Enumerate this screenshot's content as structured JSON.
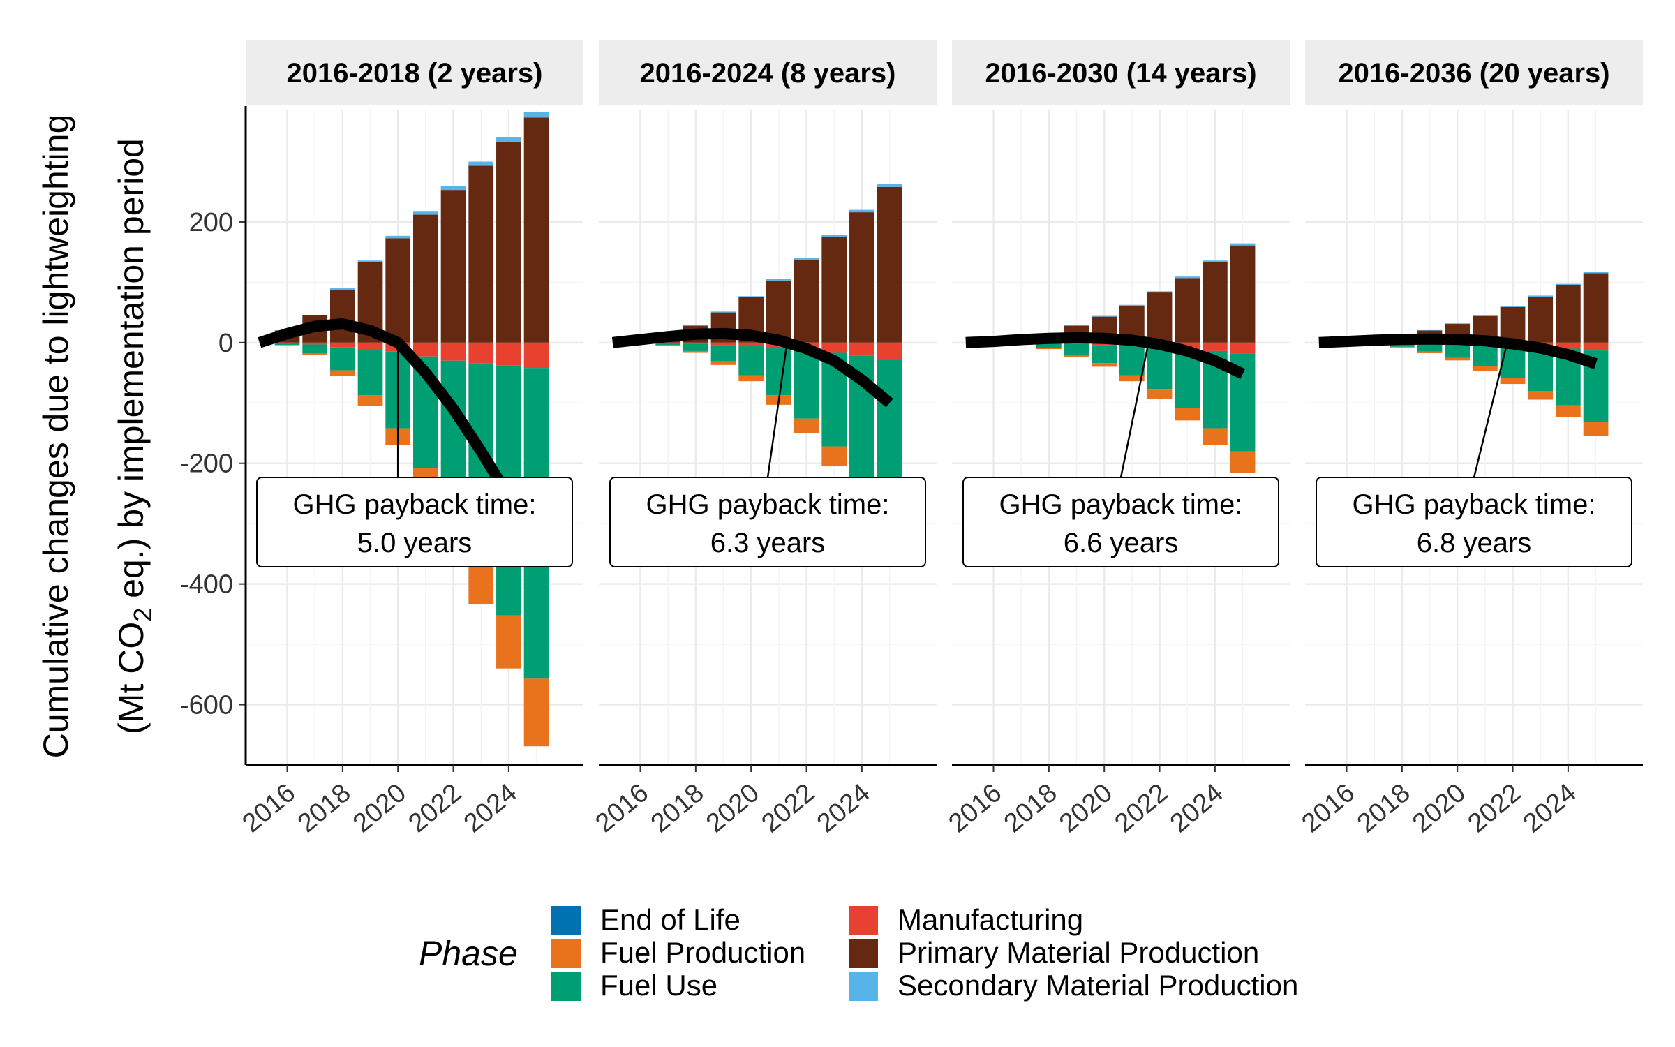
{
  "chart_data": {
    "type": "bar",
    "ylabel_line1": "Cumulative changes due to lightweighting",
    "ylabel_line2_parts": [
      "(Mt CO",
      "2",
      " eq.) by implementation period"
    ],
    "xlim": [
      2014.5,
      2026.7
    ],
    "ylim": [
      -700,
      385
    ],
    "y_ticks": [
      -600,
      -400,
      -200,
      0,
      200
    ],
    "y_tick_labels": [
      "-600",
      "-400",
      "-200",
      "0",
      "200"
    ],
    "x_ticks": [
      2016,
      2018,
      2020,
      2022,
      2024
    ],
    "x_tick_labels": [
      "2016",
      "2018",
      "2020",
      "2022",
      "2024"
    ],
    "years": [
      2015,
      2016,
      2017,
      2018,
      2019,
      2020,
      2021,
      2022,
      2023,
      2024,
      2025
    ],
    "phases": [
      {
        "key": "end_of_life",
        "name": "End of Life",
        "color": "#0072B2"
      },
      {
        "key": "fuel_production",
        "name": "Fuel Production",
        "color": "#E8731C"
      },
      {
        "key": "fuel_use",
        "name": "Fuel Use",
        "color": "#009E73"
      },
      {
        "key": "manufacturing",
        "name": "Manufacturing",
        "color": "#E8412F"
      },
      {
        "key": "primary_material",
        "name": "Primary Material Production",
        "color": "#652810"
      },
      {
        "key": "secondary_material",
        "name": "Secondary Material Production",
        "color": "#56B4E9"
      }
    ],
    "legend_title": "Phase",
    "legend_placement": "bottom",
    "grid": true,
    "facets": [
      {
        "title": "2016-2018 (2 years)",
        "payback_label": "GHG payback time:",
        "payback_value": "5.0 years",
        "payback_year": 2020.0,
        "primary_material": [
          0,
          20,
          45,
          88,
          133,
          173,
          212,
          253,
          293,
          333,
          373
        ],
        "secondary_material": [
          0,
          0.5,
          1,
          2,
          3,
          4,
          5,
          6,
          7,
          8,
          9
        ],
        "manufacturing": [
          0,
          -1,
          -3,
          -8,
          -12,
          -15,
          -23,
          -30,
          -34,
          -38,
          -42
        ],
        "fuel_use": [
          0,
          -3,
          -15,
          -38,
          -75,
          -127,
          -185,
          -258,
          -330,
          -414,
          -515
        ],
        "fuel_production": [
          0,
          -0.5,
          -3,
          -9,
          -18,
          -28,
          -40,
          -55,
          -70,
          -88,
          -112
        ],
        "end_of_life": [
          0,
          0,
          0,
          0,
          0,
          0,
          0,
          0,
          0,
          0,
          0
        ],
        "net_line": [
          0,
          15,
          27,
          31,
          20,
          0,
          -50,
          -110,
          -180,
          -255,
          -340
        ]
      },
      {
        "title": "2016-2024 (8 years)",
        "payback_label": "GHG payback time:",
        "payback_value": "6.3 years",
        "payback_year": 2021.3,
        "primary_material": [
          0,
          4,
          12,
          28,
          50,
          75,
          103,
          137,
          175,
          216,
          258
        ],
        "secondary_material": [
          0,
          0.3,
          0.6,
          1,
          1.5,
          2,
          2.5,
          3,
          3.5,
          4,
          5
        ],
        "manufacturing": [
          0,
          -0.5,
          -1,
          -2,
          -4,
          -6,
          -9,
          -13,
          -17,
          -22,
          -28
        ],
        "fuel_use": [
          0,
          -1,
          -3,
          -12,
          -27,
          -48,
          -78,
          -113,
          -155,
          -202,
          -255
        ],
        "fuel_production": [
          0,
          -0.2,
          -1,
          -3,
          -6,
          -10,
          -16,
          -24,
          -33,
          -44,
          -56
        ],
        "end_of_life": [
          0,
          0,
          0,
          0,
          0,
          0,
          0,
          0,
          0,
          0,
          0
        ],
        "net_line": [
          0,
          5,
          10,
          14,
          15,
          12,
          4,
          -10,
          -30,
          -62,
          -100
        ]
      },
      {
        "title": "2016-2030 (14 years)",
        "payback_label": "GHG payback time:",
        "payback_value": "6.6 years",
        "payback_year": 2021.6,
        "primary_material": [
          0,
          2,
          6,
          14,
          28,
          43,
          61,
          83,
          107,
          133,
          161
        ],
        "secondary_material": [
          0,
          0.2,
          0.4,
          0.6,
          1,
          1.3,
          1.6,
          2,
          2.5,
          3,
          3.5
        ],
        "manufacturing": [
          0,
          -0.3,
          -0.6,
          -1.2,
          -2.5,
          -4,
          -6,
          -8,
          -11,
          -14,
          -18
        ],
        "fuel_use": [
          0,
          -0.5,
          -2,
          -8,
          -18,
          -30,
          -48,
          -70,
          -97,
          -128,
          -162
        ],
        "fuel_production": [
          0,
          -0.1,
          -0.5,
          -1.5,
          -3.5,
          -6,
          -10,
          -15,
          -21,
          -28,
          -36
        ],
        "end_of_life": [
          0,
          0,
          0,
          0,
          0,
          0,
          0,
          0,
          0,
          0,
          0
        ],
        "net_line": [
          0,
          2,
          5,
          7,
          8,
          7,
          4,
          -3,
          -14,
          -30,
          -52
        ]
      },
      {
        "title": "2016-2036 (20 years)",
        "payback_label": "GHG payback time:",
        "payback_value": "6.8 years",
        "payback_year": 2021.8,
        "primary_material": [
          0,
          1.5,
          4,
          10,
          20,
          31,
          44,
          59,
          76,
          95,
          115
        ],
        "secondary_material": [
          0,
          0.1,
          0.3,
          0.5,
          0.8,
          1,
          1.3,
          1.6,
          2,
          2.4,
          2.8
        ],
        "manufacturing": [
          0,
          -0.2,
          -0.5,
          -1,
          -2,
          -3,
          -4.5,
          -6,
          -8,
          -10,
          -13
        ],
        "fuel_use": [
          0,
          -0.3,
          -1.5,
          -6,
          -13,
          -22,
          -35,
          -52,
          -72,
          -94,
          -118
        ],
        "fuel_production": [
          0,
          -0.1,
          -0.4,
          -1,
          -2.5,
          -4.5,
          -7,
          -10.5,
          -14.5,
          -19,
          -24
        ],
        "end_of_life": [
          0,
          0,
          0,
          0,
          0,
          0,
          0,
          0,
          0,
          0,
          0
        ],
        "net_line": [
          0,
          2,
          4,
          5.5,
          6,
          5.5,
          3,
          -2,
          -9,
          -20,
          -35
        ]
      }
    ]
  }
}
